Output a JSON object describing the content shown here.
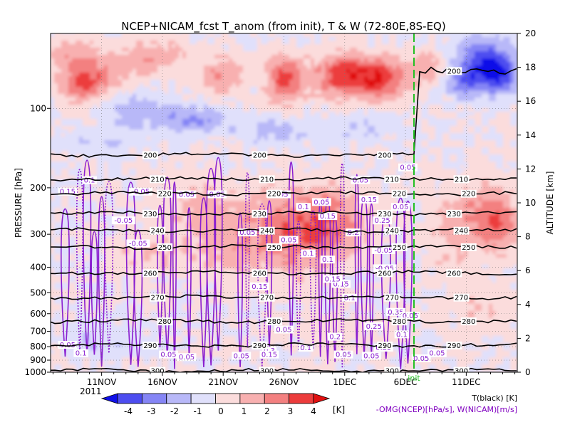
{
  "chart_data": {
    "type": "heatmap",
    "title": "NCEP+NICAM_fcst T_anom (from init), T & W   (72-80E,8S-EQ)",
    "ylabel": "PRESSURE [hPa]",
    "y2label": "ALTITUDE [km]",
    "year_label": "2011",
    "pressure_ticks": [
      "100",
      "200",
      "300",
      "400",
      "500",
      "600",
      "700",
      "800",
      "900",
      "1000"
    ],
    "pressure_values": [
      100,
      200,
      300,
      400,
      500,
      600,
      700,
      800,
      900,
      1000
    ],
    "altitude_ticks": [
      "0",
      "2",
      "4",
      "6",
      "8",
      "10",
      "12",
      "14",
      "16",
      "18",
      "20"
    ],
    "date_ticks": [
      "11NOV",
      "16NOV",
      "21NOV",
      "26NOV",
      "1DEC",
      "6DEC",
      "11DEC"
    ],
    "date_tick_days": [
      11,
      16,
      21,
      26,
      31,
      36,
      41
    ],
    "x_range_days": [
      6.8,
      45.2
    ],
    "init_day": 36.7,
    "init_label": "init",
    "colorbar": {
      "levels": [
        "-4",
        "-3",
        "-2",
        "-1",
        "0",
        "1",
        "2",
        "3",
        "4"
      ],
      "unit": "[K]",
      "colors": [
        "#1010e8",
        "#4d4df0",
        "#8585f5",
        "#b8b8f8",
        "#e0e0fb",
        "#fbdcdc",
        "#f8b0b0",
        "#f38080",
        "#ec3c3c",
        "#e01010"
      ]
    },
    "temperature_contours": {
      "levels": [
        "200",
        "210",
        "220",
        "230",
        "240",
        "250",
        "260",
        "270",
        "280",
        "290",
        "300"
      ],
      "pressures": [
        150,
        185,
        210,
        250,
        290,
        335,
        420,
        520,
        640,
        790,
        985
      ]
    },
    "omega_labels": [
      "0.05",
      "0.1",
      "0.15",
      "0.2",
      "0.25",
      "0.3",
      "0.35",
      "-0.05"
    ],
    "legend": {
      "temp": "T(black) [K]",
      "wind": "-OMG(NCEP)[hPa/s], W(NICAM)[m/s]"
    }
  }
}
